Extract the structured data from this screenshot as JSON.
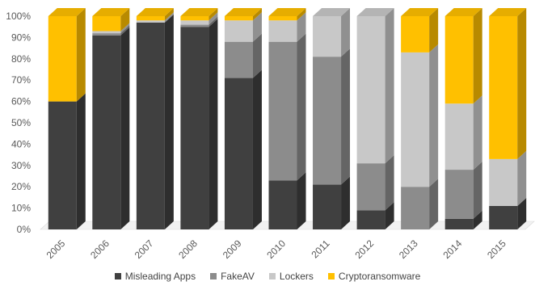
{
  "chart_data": {
    "type": "bar",
    "stacked": true,
    "style": "3d",
    "title": "",
    "xlabel": "",
    "ylabel": "",
    "ylim": [
      0,
      100
    ],
    "yticks": [
      "0%",
      "10%",
      "20%",
      "30%",
      "40%",
      "50%",
      "60%",
      "70%",
      "80%",
      "90%",
      "100%"
    ],
    "categories": [
      "2005",
      "2006",
      "2007",
      "2008",
      "2009",
      "2010",
      "2011",
      "2012",
      "2013",
      "2014",
      "2015"
    ],
    "series": [
      {
        "name": "Misleading Apps",
        "color": "#404040",
        "values": [
          60,
          91,
          97,
          95,
          71,
          23,
          21,
          9,
          0,
          5,
          11
        ]
      },
      {
        "name": "FakeAV",
        "color": "#8c8c8c",
        "values": [
          0,
          1,
          0,
          1,
          17,
          65,
          60,
          22,
          20,
          23,
          0
        ]
      },
      {
        "name": "Lockers",
        "color": "#c8c8c8",
        "values": [
          0,
          1,
          1,
          2,
          10,
          10,
          19,
          69,
          63,
          31,
          22
        ]
      },
      {
        "name": "Cryptoransomware",
        "color": "#ffc000",
        "values": [
          40,
          7,
          2,
          2,
          2,
          2,
          0,
          0,
          17,
          41,
          67
        ]
      }
    ],
    "grid": false,
    "legend_position": "bottom"
  }
}
